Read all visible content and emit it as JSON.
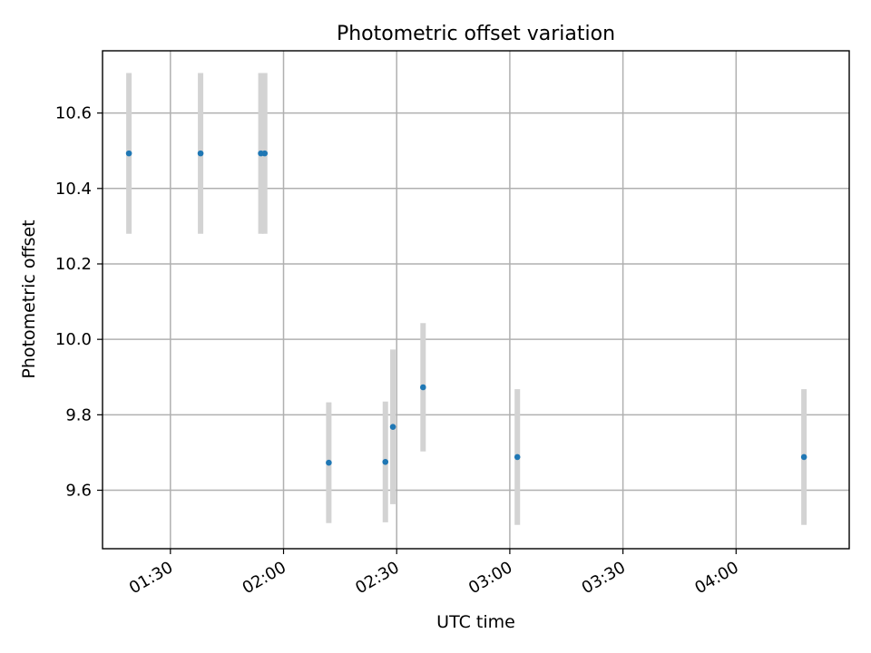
{
  "chart_data": {
    "type": "scatter",
    "title": "Photometric offset variation",
    "xlabel": "UTC time",
    "ylabel": "Photometric offset",
    "x_ticks": [
      "01:30",
      "02:00",
      "02:30",
      "03:00",
      "03:30",
      "04:00"
    ],
    "y_ticks": [
      "9.6",
      "9.8",
      "10.0",
      "10.2",
      "10.4",
      "10.6"
    ],
    "xlim": [
      "01:12",
      "04:30"
    ],
    "ylim": [
      9.445,
      10.765
    ],
    "grid": true,
    "colors": {
      "point": "#1f77b4",
      "errorbar": "#d3d3d3"
    },
    "points": [
      {
        "x": "01:19",
        "y": 10.493,
        "err": 0.213
      },
      {
        "x": "01:38",
        "y": 10.493,
        "err": 0.213
      },
      {
        "x": "01:54",
        "y": 10.493,
        "err": 0.213
      },
      {
        "x": "01:55",
        "y": 10.493,
        "err": 0.213
      },
      {
        "x": "02:12",
        "y": 9.673,
        "err": 0.16
      },
      {
        "x": "02:27",
        "y": 9.675,
        "err": 0.16
      },
      {
        "x": "02:29",
        "y": 9.768,
        "err": 0.205
      },
      {
        "x": "02:37",
        "y": 9.873,
        "err": 0.17
      },
      {
        "x": "03:02",
        "y": 9.688,
        "err": 0.18
      },
      {
        "x": "04:18",
        "y": 9.688,
        "err": 0.18
      }
    ]
  }
}
